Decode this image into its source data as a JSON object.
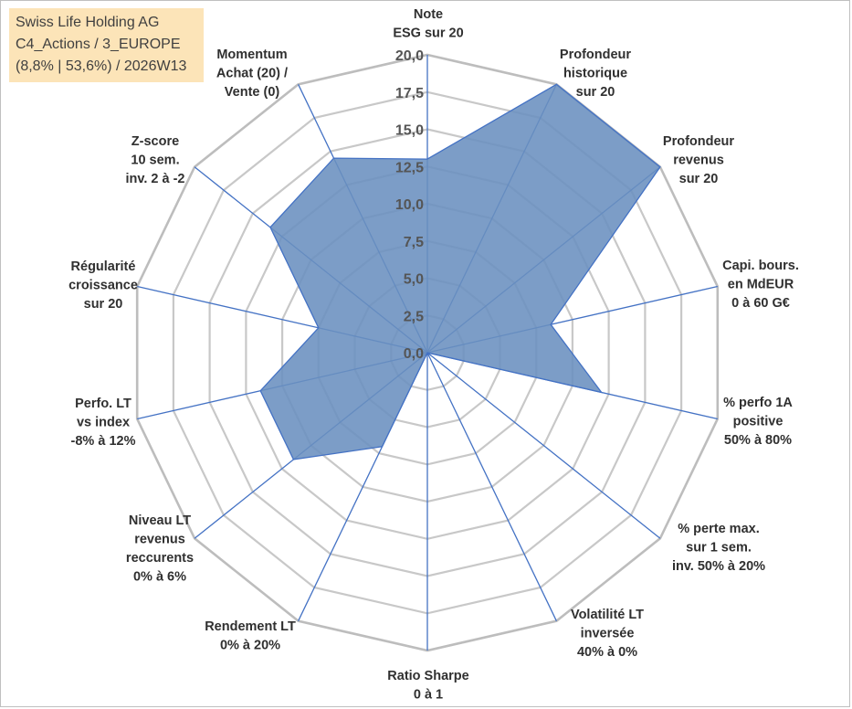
{
  "title_box": {
    "line1": "Swiss Life Holding AG",
    "line2": "C4_Actions / 3_EUROPE",
    "line3": "(8,8% | 53,6%) / 2026W13"
  },
  "chart_data": {
    "type": "radar",
    "title": "Swiss Life Holding AG",
    "subtitle": "C4_Actions / 3_EUROPE (8,8% | 53,6%) / 2026W13",
    "rlim": [
      0,
      20
    ],
    "ticks": [
      "0,0",
      "2,5",
      "5,0",
      "7,5",
      "10,0",
      "12,5",
      "15,0",
      "17,5",
      "20,0"
    ],
    "tick_values": [
      0,
      2.5,
      5,
      7.5,
      10,
      12.5,
      15,
      17.5,
      20
    ],
    "grid": true,
    "fill_color": "#6a8fbf",
    "line_color": "#4472c4",
    "grid_color": "#c8c8c8",
    "axes": [
      {
        "label": [
          "Note",
          "ESG sur 20"
        ],
        "value": 13
      },
      {
        "label": [
          "Profondeur",
          "historique",
          "sur 20"
        ],
        "value": 20
      },
      {
        "label": [
          "Profondeur",
          "revenus",
          "sur 20"
        ],
        "value": 20
      },
      {
        "label": [
          "Capi. bours.",
          "en MdEUR",
          "0 à 60 G€"
        ],
        "value": 8.5
      },
      {
        "label": [
          "% perfo 1A",
          "positive",
          "50% à 80%"
        ],
        "value": 12
      },
      {
        "label": [
          "% perte max.",
          "sur 1 sem.",
          "inv. 50% à 20%"
        ],
        "value": 0
      },
      {
        "label": [
          "Volatilité LT",
          "inversée",
          "40% à 0%"
        ],
        "value": 0
      },
      {
        "label": [
          "Ratio Sharpe",
          "0 à 1"
        ],
        "value": 0
      },
      {
        "label": [
          "Rendement LT",
          "0% à 20%"
        ],
        "value": 7
      },
      {
        "label": [
          "Niveau LT",
          "revenus",
          "reccurents",
          "0% à 6%"
        ],
        "value": 11.5
      },
      {
        "label": [
          "Perfo. LT",
          "vs index",
          "-8% à 12%"
        ],
        "value": 11.5
      },
      {
        "label": [
          "Régularité",
          "croissance",
          "sur 20"
        ],
        "value": 7.5
      },
      {
        "label": [
          "Z-score",
          "10 sem.",
          "inv. 2 à -2"
        ],
        "value": 13.5
      },
      {
        "label": [
          "Momentum",
          "Achat (20) /",
          "Vente (0)"
        ],
        "value": 14.5
      }
    ]
  }
}
